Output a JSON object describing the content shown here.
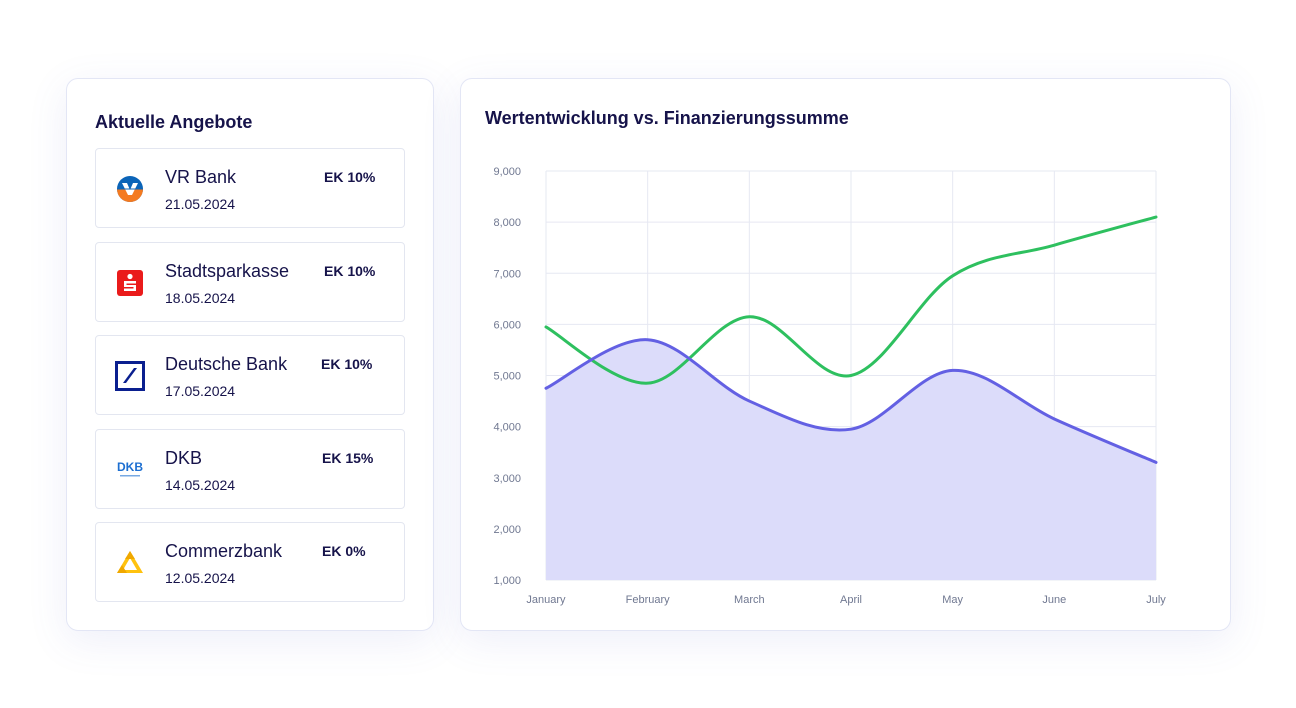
{
  "offers_panel": {
    "title": "Aktuelle Angebote",
    "items": [
      {
        "bank": "VR Bank",
        "date": "21.05.2024",
        "equity": "EK 10%",
        "icon": "vr-bank-logo-icon"
      },
      {
        "bank": "Stadtsparkasse",
        "date": "18.05.2024",
        "equity": "EK 10%",
        "icon": "sparkasse-logo-icon"
      },
      {
        "bank": "Deutsche Bank",
        "date": "17.05.2024",
        "equity": "EK 10%",
        "icon": "deutsche-bank-logo-icon"
      },
      {
        "bank": "DKB",
        "date": "14.05.2024",
        "equity": "EK 15%",
        "icon": "dkb-logo-icon",
        "logo_text": "DKB"
      },
      {
        "bank": "Commerzbank",
        "date": "12.05.2024",
        "equity": "EK 0%",
        "icon": "commerzbank-logo-icon"
      }
    ]
  },
  "chart_panel": {
    "title": "Wertentwicklung vs. Finanzierungssumme"
  },
  "chart_data": {
    "type": "line",
    "title": "Wertentwicklung vs. Finanzierungssumme",
    "categories": [
      "January",
      "February",
      "March",
      "April",
      "May",
      "June",
      "July"
    ],
    "y_ticks": [
      "9,000",
      "8,000",
      "7,000",
      "6,000",
      "5,000",
      "4,000",
      "3,000",
      "2,000",
      "1,000"
    ],
    "ylim": [
      1000,
      9000
    ],
    "grid": true,
    "legend": "none",
    "series": [
      {
        "values": [
          5950,
          4850,
          6150,
          5000,
          6950,
          7550,
          8100
        ],
        "color": "#2ec05f",
        "style": "line"
      },
      {
        "values": [
          4750,
          5700,
          4500,
          3950,
          5100,
          4150,
          3300
        ],
        "color": "#6360e3",
        "fill": "#dcdcfa",
        "style": "area"
      }
    ]
  },
  "colors": {
    "title_text": "#16134a",
    "card_border": "#e3e6f5",
    "grid": "#e6e8f2",
    "tick_text": "#707891"
  }
}
